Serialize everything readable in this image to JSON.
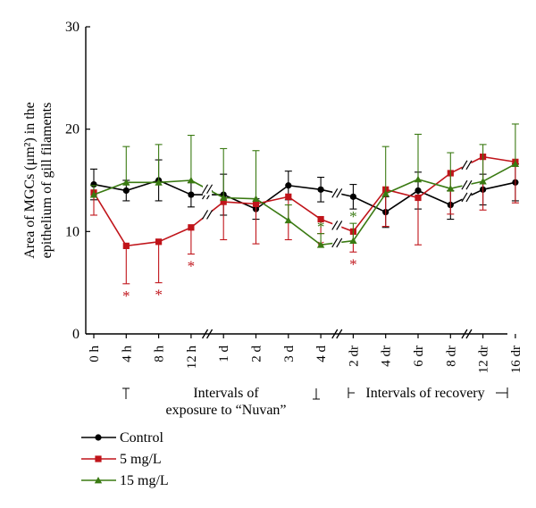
{
  "chart_data": {
    "type": "line",
    "title": "",
    "ylabel_line1": "Area of MGCs (μm²) in the",
    "ylabel_line2": "epithelium of gill filaments",
    "xlabel": "",
    "ylim": [
      0,
      30
    ],
    "yticks": [
      0,
      10,
      20,
      30
    ],
    "grid": false,
    "categories": [
      "0 h",
      "4 h",
      "8 h",
      "12 h",
      "1 d",
      "2 d",
      "3 d",
      "4 d",
      "2 dr",
      "4 dr",
      "6 dr",
      "8 dr",
      "12 dr",
      "16 dr"
    ],
    "axis_breaks_after": [
      "12 h",
      "4 d",
      "8 dr"
    ],
    "series": [
      {
        "name": "Control",
        "color": "#000000",
        "marker": "circle",
        "values": [
          14.6,
          14.0,
          15.0,
          13.6,
          13.6,
          12.2,
          14.5,
          14.1,
          13.4,
          11.9,
          14.0,
          12.6,
          14.1,
          14.8
        ],
        "error": [
          1.5,
          1.0,
          2.0,
          1.2,
          2.0,
          1.0,
          1.4,
          1.2,
          1.2,
          1.5,
          1.8,
          1.4,
          1.5,
          1.8
        ]
      },
      {
        "name": "5 mg/L",
        "color": "#c0141a",
        "marker": "square",
        "values": [
          13.8,
          8.6,
          9.0,
          10.4,
          12.9,
          12.7,
          13.4,
          11.2,
          10.0,
          14.1,
          13.3,
          15.7,
          17.3,
          16.8
        ],
        "error": [
          2.2,
          3.7,
          4.0,
          2.6,
          3.7,
          3.9,
          4.2,
          1.4,
          2.0,
          3.6,
          4.6,
          4.0,
          5.2,
          4.0
        ],
        "error_direction": "down",
        "significant": [
          "4 h",
          "8 h",
          "12 h",
          "4 d",
          "2 dr"
        ]
      },
      {
        "name": "15 mg/L",
        "color": "#3a7a12",
        "marker": "triangle",
        "values": [
          13.6,
          14.8,
          14.8,
          15.0,
          13.3,
          13.2,
          11.1,
          8.7,
          9.1,
          13.7,
          15.1,
          14.2,
          14.9,
          16.6
        ],
        "error": [
          0.9,
          3.5,
          3.7,
          4.4,
          4.8,
          4.7,
          1.5,
          1.1,
          1.7,
          4.6,
          4.4,
          3.5,
          3.6,
          3.9
        ],
        "error_direction": "up",
        "significant": [
          "4 d",
          "2 dr"
        ]
      }
    ],
    "significance_mark": "*",
    "annotations": {
      "exposure_line1": "Intervals of",
      "exposure_line2": "exposure to “Nuvan”",
      "recovery": "Intervals of recovery"
    },
    "legend_position": "bottom-left"
  }
}
